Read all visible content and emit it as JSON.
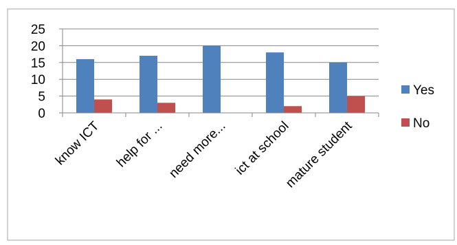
{
  "chart_data": {
    "type": "bar",
    "categories": [
      "know ICT",
      "help for ...",
      "need more...",
      "ict at school",
      "mature student"
    ],
    "series": [
      {
        "name": "Yes",
        "values": [
          16,
          17,
          20,
          18,
          15
        ],
        "color": "#4F81BD"
      },
      {
        "name": "No",
        "values": [
          4,
          3,
          0,
          2,
          5
        ],
        "color": "#C0504D"
      }
    ],
    "yticks": [
      0,
      5,
      10,
      15,
      20,
      25
    ],
    "ylim": [
      0,
      25
    ],
    "grid": true,
    "legend_position": "right",
    "xtick_rotation": -45
  }
}
